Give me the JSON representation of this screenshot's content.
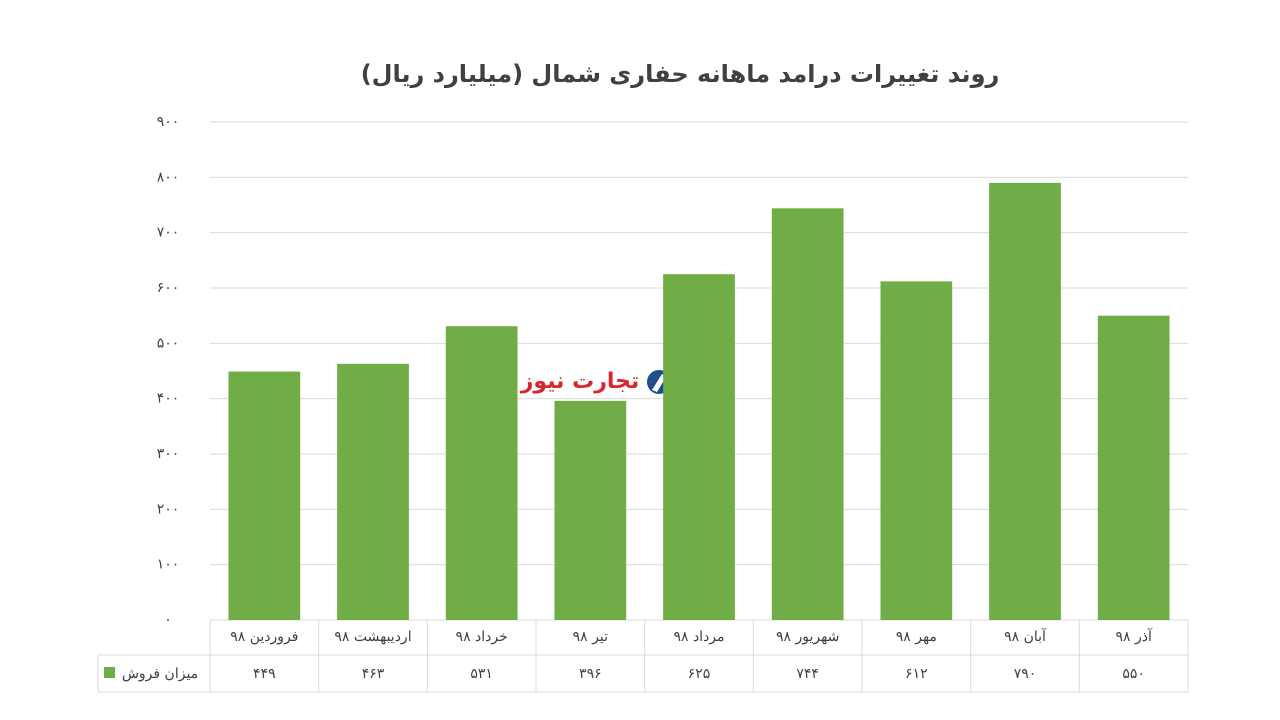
{
  "chart_data": {
    "type": "bar",
    "title": "روند تغییرات  درامد ماهانه حفاری شمال (میلیارد ریال)",
    "watermark": "تجارت نیوز",
    "categories": [
      "فروردین ۹۸",
      "اردیبهشت ۹۸",
      "خرداد ۹۸",
      "تیر ۹۸",
      "مرداد ۹۸",
      "شهریور ۹۸",
      "مهر ۹۸",
      "آبان ۹۸",
      "آذر ۹۸"
    ],
    "series": [
      {
        "name": "میزان فروش",
        "color": "#70ad47",
        "values": [
          449,
          463,
          531,
          396,
          625,
          744,
          612,
          790,
          550
        ],
        "value_labels": [
          "۴۴۹",
          "۴۶۳",
          "۵۳۱",
          "۳۹۶",
          "۶۲۵",
          "۷۴۴",
          "۶۱۲",
          "۷۹۰",
          "۵۵۰"
        ]
      }
    ],
    "ylim": [
      0,
      900
    ],
    "yticks": [
      {
        "value": 0,
        "label": "۰"
      },
      {
        "value": 100,
        "label": "۱۰۰"
      },
      {
        "value": 200,
        "label": "۲۰۰"
      },
      {
        "value": 300,
        "label": "۳۰۰"
      },
      {
        "value": 400,
        "label": "۴۰۰"
      },
      {
        "value": 500,
        "label": "۵۰۰"
      },
      {
        "value": 600,
        "label": "۶۰۰"
      },
      {
        "value": 700,
        "label": "۷۰۰"
      },
      {
        "value": 800,
        "label": "۸۰۰"
      },
      {
        "value": 900,
        "label": "۹۰۰"
      }
    ],
    "grid": true
  }
}
